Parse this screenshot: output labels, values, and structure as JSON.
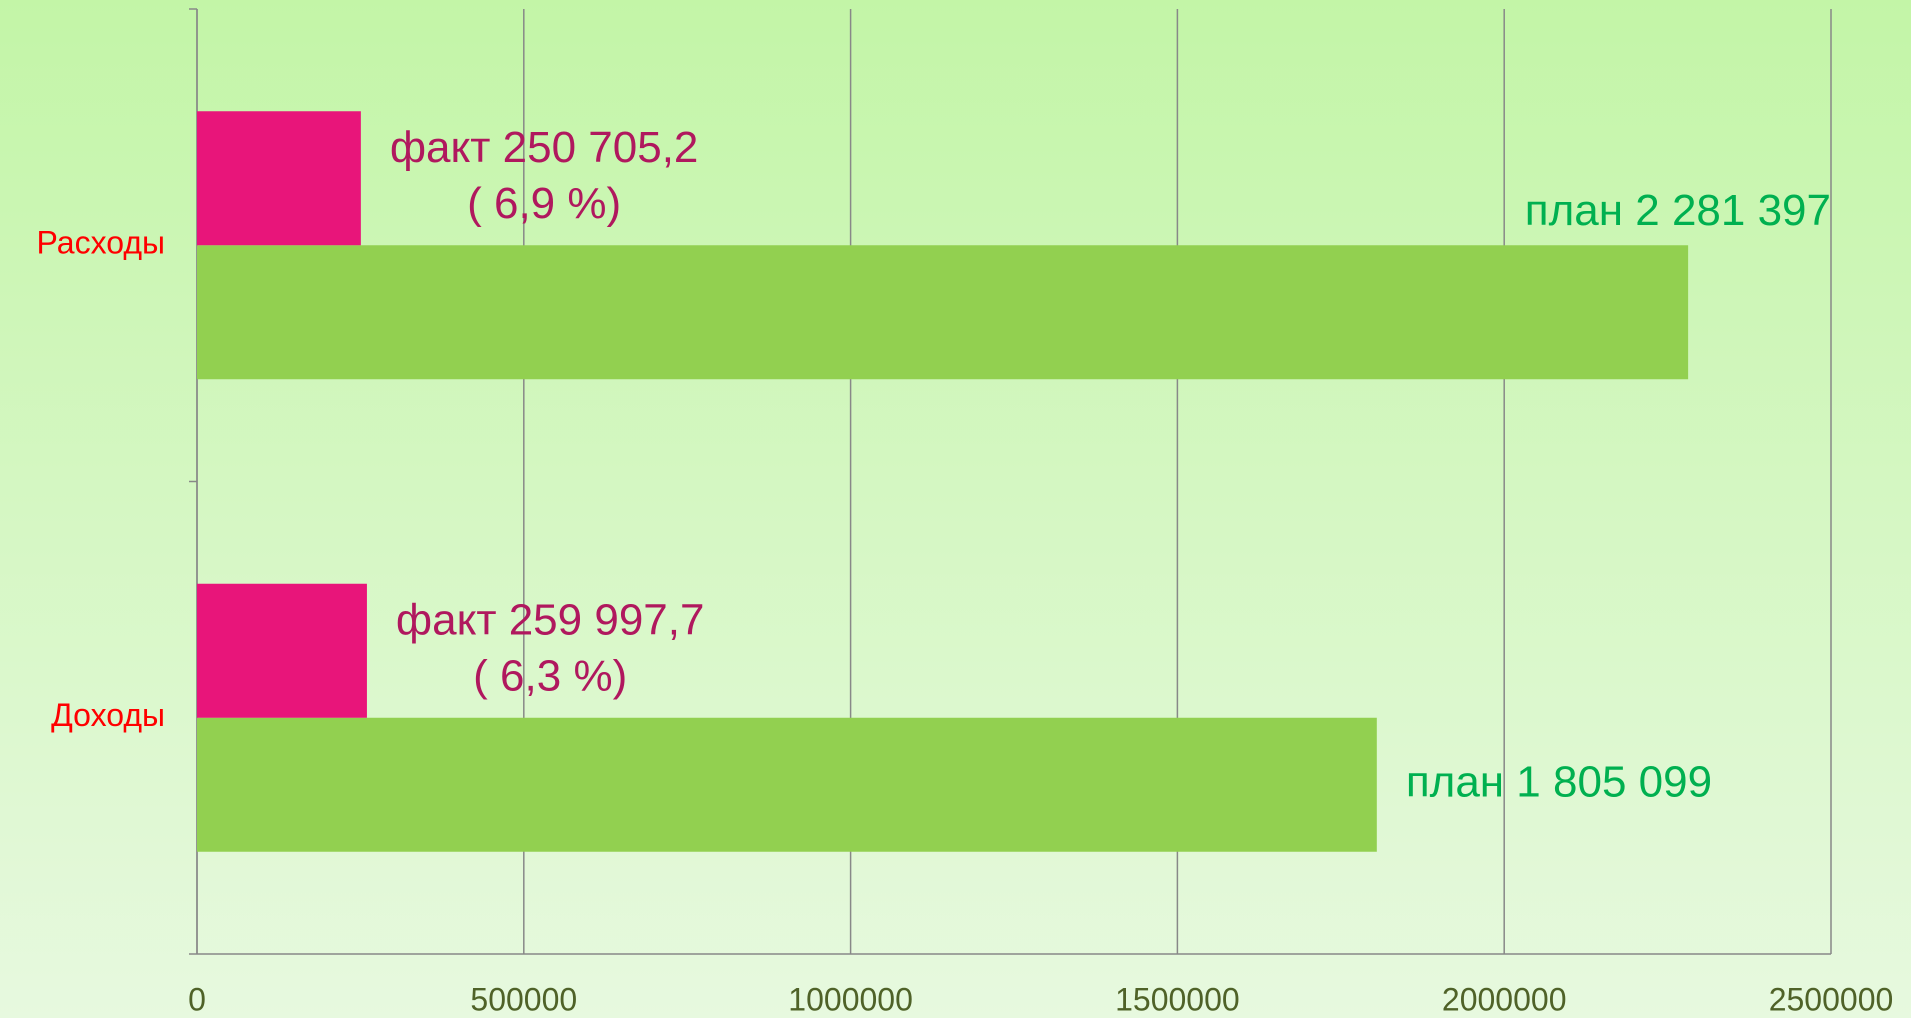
{
  "chart_data": {
    "type": "bar",
    "orientation": "horizontal",
    "categories": [
      "Доходы",
      "Расходы"
    ],
    "series": [
      {
        "color": "#92d050",
        "values": [
          1805099,
          2281397
        ],
        "value_labels": [
          [
            "план 1 805 099"
          ],
          [
            "план 2 281 397"
          ]
        ]
      },
      {
        "color": "#e8157a",
        "values": [
          259997.7,
          250705.2
        ],
        "value_labels": [
          [
            "факт 259 997,7",
            "( 6,3 %)"
          ],
          [
            "факт 250 705,2",
            "( 6,9 %)"
          ]
        ]
      }
    ],
    "xlim": [
      0,
      2500000
    ],
    "xticks": [
      0,
      500000,
      1000000,
      1500000,
      2000000,
      2500000
    ],
    "grid": true
  }
}
